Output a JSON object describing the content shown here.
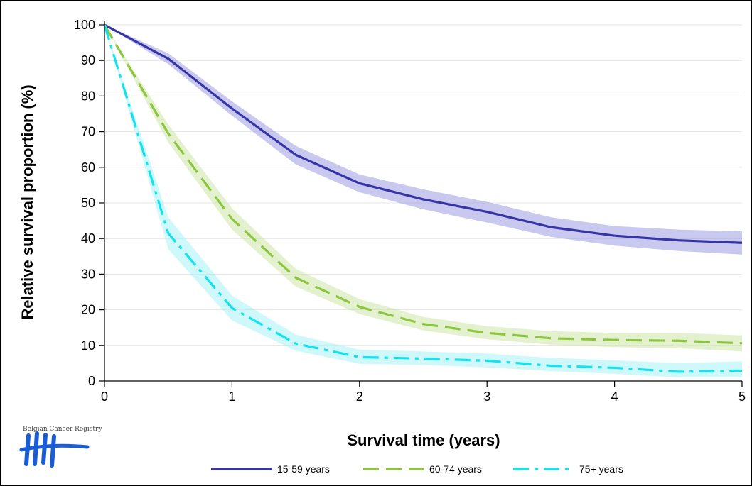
{
  "chart_data": {
    "type": "line",
    "title": "",
    "xlabel": "Survival time (years)",
    "ylabel": "Relative survival proportion (%)",
    "xlim": [
      0,
      5
    ],
    "ylim": [
      0,
      100
    ],
    "x_ticks": [
      "0",
      "1",
      "2",
      "3",
      "4",
      "5"
    ],
    "y_ticks": [
      "0",
      "10",
      "20",
      "30",
      "40",
      "50",
      "60",
      "70",
      "80",
      "90",
      "100"
    ],
    "grid": "horizontal",
    "legend_position": "bottom",
    "x": [
      0,
      0.5,
      1,
      1.5,
      2,
      2.5,
      3,
      3.5,
      4,
      4.5,
      5
    ],
    "series": [
      {
        "name": "15-59 years",
        "color": "#3535a8",
        "band_color": "#9d9be0",
        "line_style": "solid",
        "values": [
          100,
          90.5,
          76.5,
          63.5,
          55.5,
          51,
          47.5,
          43.2,
          40.8,
          39.5,
          38.8
        ],
        "lower": [
          100,
          89,
          74.5,
          60.8,
          53,
          48.2,
          44.5,
          40.5,
          38,
          36.5,
          35.5
        ],
        "upper": [
          100,
          92,
          78.5,
          66,
          58,
          53.8,
          50.3,
          46,
          43.5,
          42.5,
          42
        ]
      },
      {
        "name": "60-74 years",
        "color": "#8cc63f",
        "band_color": "#cde6a6",
        "line_style": "dashed",
        "values": [
          100,
          69.5,
          45.5,
          29,
          20.8,
          16,
          13.5,
          12,
          11.5,
          11.3,
          10.6
        ],
        "lower": [
          100,
          67,
          42.5,
          26.5,
          18.8,
          14.2,
          11.7,
          10.2,
          9.5,
          9.2,
          8.3
        ],
        "upper": [
          100,
          72,
          48.5,
          31.5,
          23,
          18,
          15.4,
          14,
          13.5,
          13.5,
          12.8
        ]
      },
      {
        "name": "75+ years",
        "color": "#12e3f0",
        "band_color": "#a8f3f8",
        "line_style": "dashdot",
        "values": [
          100,
          41.5,
          20.5,
          10.5,
          6.7,
          6.3,
          5.7,
          4.3,
          3.7,
          2.6,
          2.9
        ],
        "lower": [
          100,
          37,
          17,
          8.5,
          4.8,
          4.5,
          3.8,
          2.8,
          2,
          1,
          1
        ],
        "upper": [
          100,
          46,
          24,
          13,
          8.8,
          8.3,
          7.7,
          6.5,
          5.8,
          5,
          5.5
        ]
      }
    ]
  },
  "logo": {
    "text": "Belgian Cancer Registry",
    "color": "#1a5bd6"
  }
}
